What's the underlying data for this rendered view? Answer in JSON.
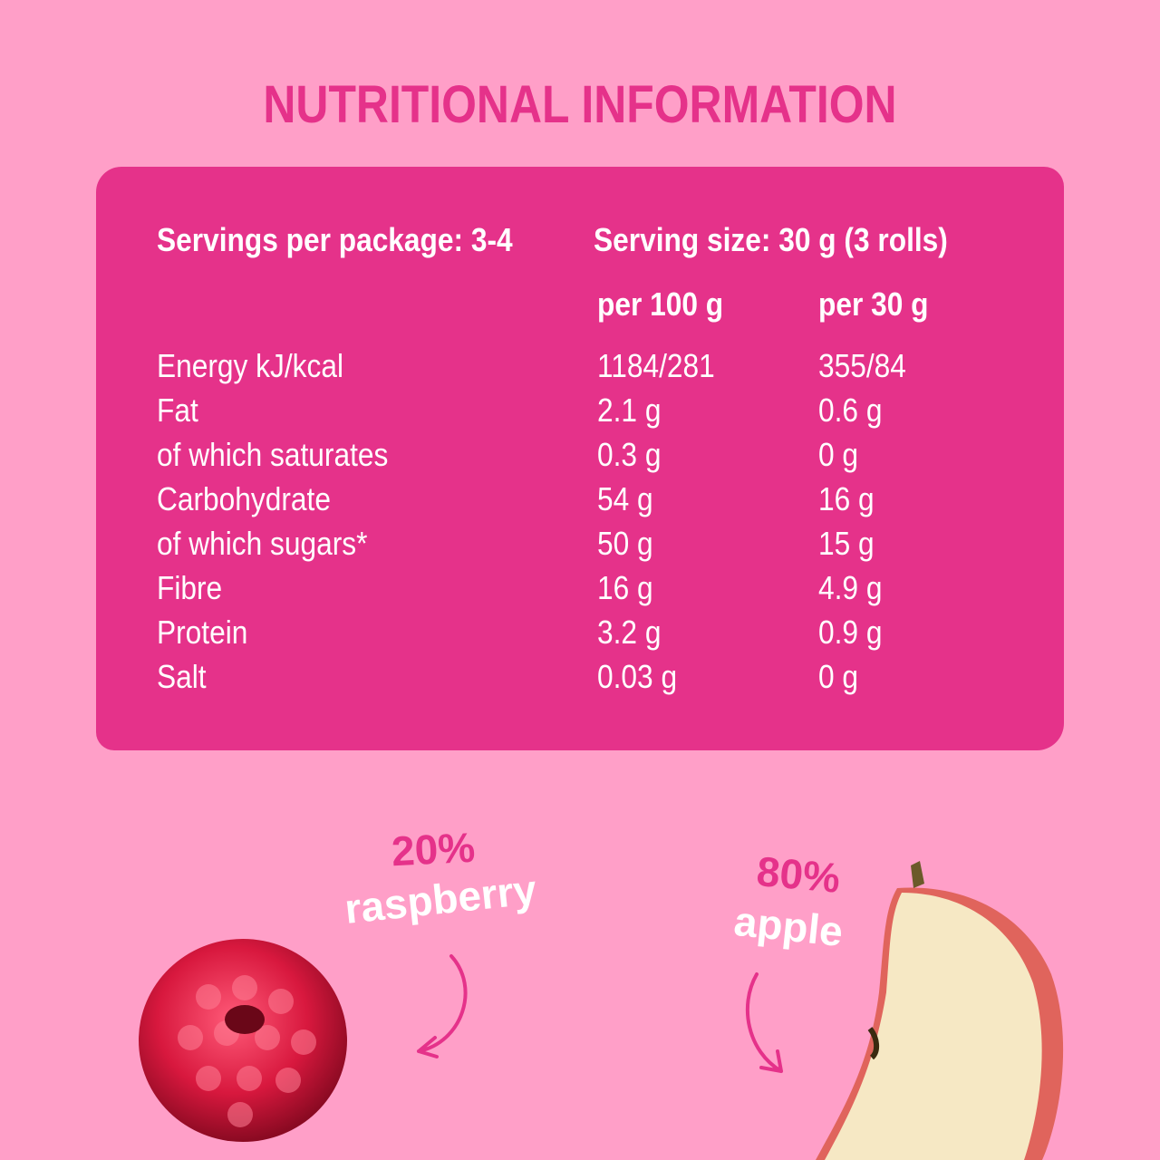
{
  "title": "NUTRITIONAL INFORMATION",
  "servings_per_package": "Servings per package: 3-4",
  "serving_size": "Serving size: 30 g (3 rolls)",
  "columns": [
    "per 100 g",
    "per 30 g"
  ],
  "rows": [
    {
      "name": "Energy kJ/kcal",
      "per100": "1184/281",
      "per30": "355/84"
    },
    {
      "name": "Fat",
      "per100": "2.1 g",
      "per30": "0.6 g"
    },
    {
      "name": "of which saturates",
      "per100": "0.3 g",
      "per30": "0 g"
    },
    {
      "name": "Carbohydrate",
      "per100": "54 g",
      "per30": "16 g"
    },
    {
      "name": "of which sugars*",
      "per100": "50 g",
      "per30": "15 g"
    },
    {
      "name": "Fibre",
      "per100": "16 g",
      "per30": "4.9 g"
    },
    {
      "name": "Protein",
      "per100": "3.2 g",
      "per30": "0.9 g"
    },
    {
      "name": "Salt",
      "per100": "0.03 g",
      "per30": "0 g"
    }
  ],
  "ingredients": [
    {
      "percent": "20%",
      "name": "raspberry"
    },
    {
      "percent": "80%",
      "name": "apple"
    }
  ],
  "colors": {
    "background": "#ff9fc8",
    "accent": "#e5328a"
  }
}
